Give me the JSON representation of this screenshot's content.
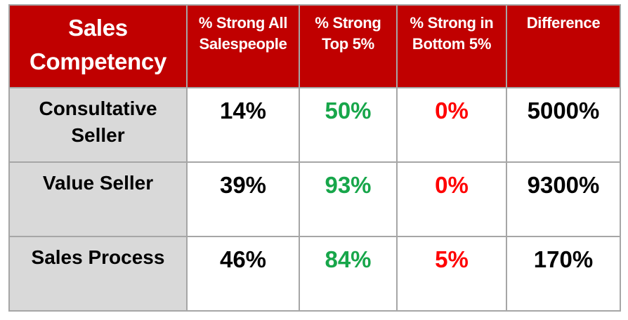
{
  "table": {
    "header": [
      "Sales Competency",
      "% Strong All Salespeople",
      "% Strong Top 5%",
      "% Strong in Bottom 5%",
      "Difference"
    ],
    "rows": [
      [
        "Consultative Seller",
        "14%",
        "50%",
        "0%",
        "5000%"
      ],
      [
        "Value Seller",
        "39%",
        "93%",
        "0%",
        "9300%"
      ],
      [
        "Sales Process",
        "46%",
        "84%",
        "5%",
        "170%"
      ]
    ]
  }
}
